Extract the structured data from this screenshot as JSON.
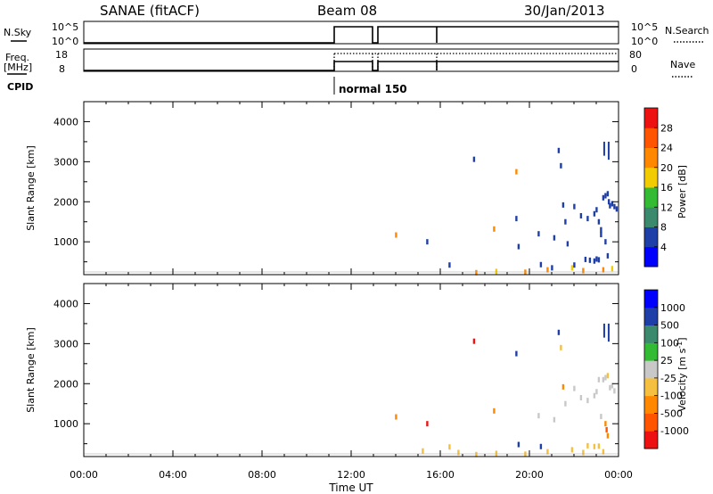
{
  "header": {
    "station": "SANAE (fitACF)",
    "beam": "Beam 08",
    "date": "30/Jan/2013"
  },
  "params": {
    "nsky_label": "N.Sky",
    "nsky_ticks": [
      "10^5",
      "10^0"
    ],
    "nsearch_label": "N.Search",
    "nsearch_ticks": [
      "10^5",
      "10^0"
    ],
    "freq_label_line1": "Freq.",
    "freq_label_line2": "[MHz]",
    "freq_ticks": [
      "18",
      "8"
    ],
    "nave_label": "Nave",
    "nave_ticks": [
      "80",
      "0"
    ],
    "cpid_label": "CPID",
    "cpid_value": "normal 150",
    "cpid_start": "11:30"
  },
  "colors": {
    "power": [
      "#0000ff",
      "#1e3ea8",
      "#3c8a6e",
      "#33bb33",
      "#f2cc00",
      "#ff8800",
      "#ff5500",
      "#ee1111"
    ],
    "velocity": [
      "#ee1111",
      "#ff5500",
      "#ff8800",
      "#f5c040",
      "#c8c8c8",
      "#33bb33",
      "#3c8a6e",
      "#1e3ea8",
      "#0000ff"
    ]
  },
  "chart_data": [
    {
      "type": "scatter",
      "title": "Power",
      "xlabel": "Time UT",
      "ylabel": "Slant Range [km]",
      "xlim": [
        "00:00",
        "24:00"
      ],
      "ylim": [
        180,
        4500
      ],
      "x_ticks": [
        "00:00",
        "04:00",
        "08:00",
        "12:00",
        "16:00",
        "20:00",
        "00:00"
      ],
      "y_ticks": [
        1000,
        2000,
        3000,
        4000
      ],
      "colorbar": {
        "label": "Power [dB]",
        "ticks": [
          "4",
          "8",
          "12",
          "16",
          "20",
          "24",
          "28"
        ]
      },
      "points": [
        {
          "t": 14.0,
          "r": 1170,
          "v": 20
        },
        {
          "t": 15.4,
          "r": 1000,
          "v": 6
        },
        {
          "t": 16.4,
          "r": 420,
          "v": 6
        },
        {
          "t": 17.5,
          "r": 3060,
          "v": 6
        },
        {
          "t": 18.4,
          "r": 1320,
          "v": 20
        },
        {
          "t": 19.4,
          "r": 2750,
          "v": 20
        },
        {
          "t": 19.4,
          "r": 1580,
          "v": 6
        },
        {
          "t": 19.5,
          "r": 880,
          "v": 6
        },
        {
          "t": 20.4,
          "r": 1200,
          "v": 6
        },
        {
          "t": 20.5,
          "r": 430,
          "v": 6
        },
        {
          "t": 21.1,
          "r": 1100,
          "v": 6
        },
        {
          "t": 21.3,
          "r": 3280,
          "v": 6
        },
        {
          "t": 21.4,
          "r": 2900,
          "v": 6
        },
        {
          "t": 21.5,
          "r": 1920,
          "v": 6
        },
        {
          "t": 21.6,
          "r": 1500,
          "v": 6
        },
        {
          "t": 21.7,
          "r": 950,
          "v": 6
        },
        {
          "t": 22.0,
          "r": 1880,
          "v": 6
        },
        {
          "t": 22.3,
          "r": 1650,
          "v": 6
        },
        {
          "t": 22.6,
          "r": 1580,
          "v": 6
        },
        {
          "t": 22.9,
          "r": 1700,
          "v": 6
        },
        {
          "t": 23.0,
          "r": 1800,
          "v": 6
        },
        {
          "t": 23.1,
          "r": 1500,
          "v": 6
        },
        {
          "t": 23.2,
          "r": 1300,
          "v": 6
        },
        {
          "t": 23.3,
          "r": 2100,
          "v": 6
        },
        {
          "t": 23.4,
          "r": 2150,
          "v": 6
        },
        {
          "t": 23.5,
          "r": 2200,
          "v": 6
        },
        {
          "t": 23.55,
          "r": 2000,
          "v": 6
        },
        {
          "t": 23.6,
          "r": 1900,
          "v": 6
        },
        {
          "t": 23.7,
          "r": 1950,
          "v": 6
        },
        {
          "t": 23.8,
          "r": 1880,
          "v": 6
        },
        {
          "t": 23.9,
          "r": 1820,
          "v": 6
        },
        {
          "t": 23.2,
          "r": 1180,
          "v": 6
        },
        {
          "t": 23.4,
          "r": 1000,
          "v": 6
        },
        {
          "t": 23.5,
          "r": 650,
          "v": 6
        },
        {
          "t": 22.5,
          "r": 560,
          "v": 6
        },
        {
          "t": 22.7,
          "r": 540,
          "v": 6
        },
        {
          "t": 22.9,
          "r": 520,
          "v": 6
        },
        {
          "t": 23.0,
          "r": 570,
          "v": 6
        },
        {
          "t": 23.1,
          "r": 550,
          "v": 6
        },
        {
          "t": 17.6,
          "r": 230,
          "v": 20
        },
        {
          "t": 18.5,
          "r": 260,
          "v": 16
        },
        {
          "t": 19.8,
          "r": 240,
          "v": 20
        },
        {
          "t": 20.8,
          "r": 300,
          "v": 20
        },
        {
          "t": 21.9,
          "r": 350,
          "v": 16
        },
        {
          "t": 22.4,
          "r": 280,
          "v": 20
        },
        {
          "t": 23.3,
          "r": 300,
          "v": 20
        },
        {
          "t": 23.7,
          "r": 330,
          "v": 16
        },
        {
          "t": 22.0,
          "r": 420,
          "v": 6
        },
        {
          "t": 21.0,
          "r": 350,
          "v": 6
        }
      ],
      "streaks": [
        {
          "t": 23.35,
          "r0": 3150,
          "r1": 3500,
          "v": 6
        },
        {
          "t": 23.55,
          "r0": 3050,
          "r1": 3500,
          "v": 6
        }
      ]
    },
    {
      "type": "scatter",
      "title": "Velocity",
      "xlabel": "Time UT",
      "ylabel": "Slant Range [km]",
      "xlim": [
        "00:00",
        "24:00"
      ],
      "ylim": [
        180,
        4500
      ],
      "x_ticks": [
        "00:00",
        "04:00",
        "08:00",
        "12:00",
        "16:00",
        "20:00",
        "00:00"
      ],
      "y_ticks": [
        1000,
        2000,
        3000,
        4000
      ],
      "colorbar": {
        "label": "Velocity [m s^-1]",
        "ticks": [
          "1000",
          "500",
          "100",
          "25",
          "-25",
          "-100",
          "-500",
          "-1000"
        ]
      },
      "points": [
        {
          "t": 14.0,
          "r": 1170,
          "v": -200
        },
        {
          "t": 15.4,
          "r": 1000,
          "v": -1200
        },
        {
          "t": 16.4,
          "r": 420,
          "v": -80
        },
        {
          "t": 17.5,
          "r": 3060,
          "v": -1200
        },
        {
          "t": 18.4,
          "r": 1320,
          "v": -200
        },
        {
          "t": 19.4,
          "r": 2750,
          "v": 800
        },
        {
          "t": 19.5,
          "r": 480,
          "v": 800
        },
        {
          "t": 20.4,
          "r": 1200,
          "v": 0
        },
        {
          "t": 20.5,
          "r": 430,
          "v": 800
        },
        {
          "t": 21.1,
          "r": 1100,
          "v": 0
        },
        {
          "t": 21.3,
          "r": 3280,
          "v": 800
        },
        {
          "t": 21.4,
          "r": 2900,
          "v": -80
        },
        {
          "t": 21.5,
          "r": 1920,
          "v": -200
        },
        {
          "t": 21.6,
          "r": 1500,
          "v": 0
        },
        {
          "t": 22.0,
          "r": 1880,
          "v": 0
        },
        {
          "t": 22.3,
          "r": 1650,
          "v": 0
        },
        {
          "t": 22.6,
          "r": 1580,
          "v": 0
        },
        {
          "t": 22.9,
          "r": 1700,
          "v": 0
        },
        {
          "t": 23.0,
          "r": 1800,
          "v": 0
        },
        {
          "t": 23.1,
          "r": 2100,
          "v": 0
        },
        {
          "t": 23.3,
          "r": 2100,
          "v": 0
        },
        {
          "t": 23.4,
          "r": 2150,
          "v": 0
        },
        {
          "t": 23.5,
          "r": 2200,
          "v": -80
        },
        {
          "t": 23.6,
          "r": 1900,
          "v": 0
        },
        {
          "t": 23.7,
          "r": 1950,
          "v": 0
        },
        {
          "t": 23.8,
          "r": 1820,
          "v": 0
        },
        {
          "t": 23.2,
          "r": 1180,
          "v": 0
        },
        {
          "t": 23.4,
          "r": 1000,
          "v": -200
        },
        {
          "t": 23.5,
          "r": 700,
          "v": -200
        },
        {
          "t": 23.45,
          "r": 850,
          "v": -800
        },
        {
          "t": 22.6,
          "r": 450,
          "v": -80
        },
        {
          "t": 22.9,
          "r": 430,
          "v": -80
        },
        {
          "t": 23.1,
          "r": 440,
          "v": -80
        },
        {
          "t": 17.6,
          "r": 230,
          "v": -80
        },
        {
          "t": 18.5,
          "r": 260,
          "v": -80
        },
        {
          "t": 19.8,
          "r": 240,
          "v": -80
        },
        {
          "t": 20.8,
          "r": 300,
          "v": -80
        },
        {
          "t": 21.9,
          "r": 350,
          "v": -80
        },
        {
          "t": 22.4,
          "r": 280,
          "v": -80
        },
        {
          "t": 23.3,
          "r": 300,
          "v": -80
        },
        {
          "t": 15.2,
          "r": 320,
          "v": -80
        },
        {
          "t": 16.8,
          "r": 280,
          "v": -80
        }
      ],
      "streaks": [
        {
          "t": 23.35,
          "r0": 3150,
          "r1": 3500,
          "v": 800
        },
        {
          "t": 23.55,
          "r0": 3050,
          "r1": 3500,
          "v": 800
        }
      ]
    }
  ]
}
